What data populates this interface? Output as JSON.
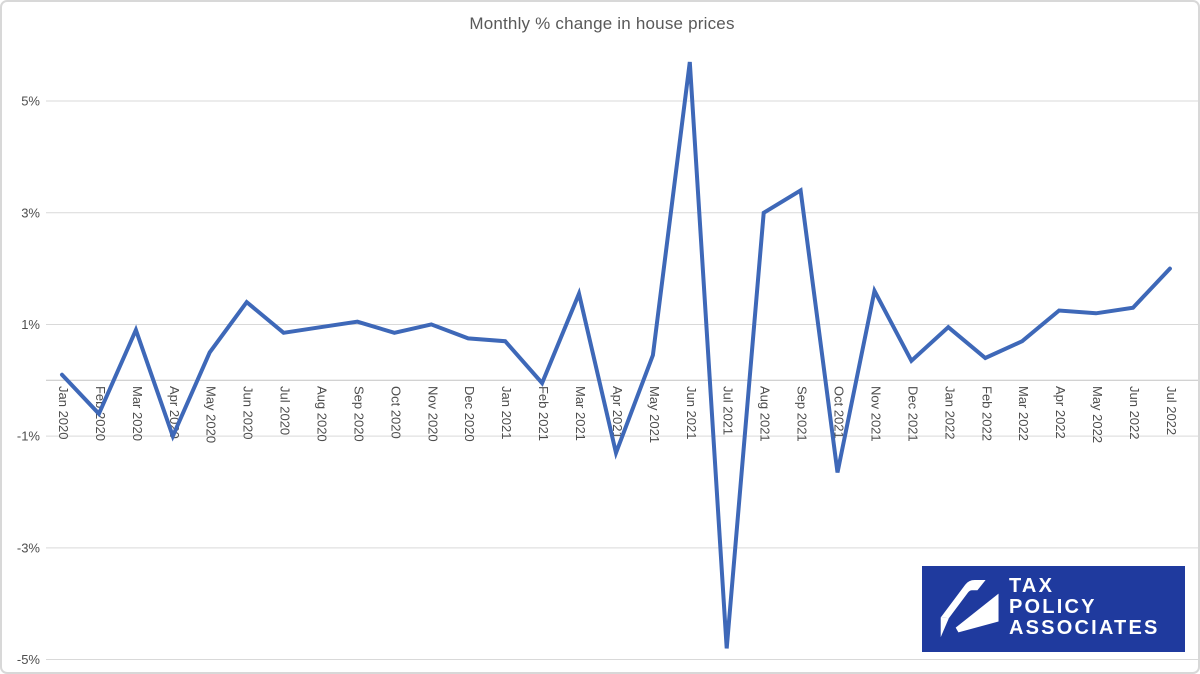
{
  "chart_data": {
    "type": "line",
    "title": "Monthly % change in house prices",
    "categories": [
      "Jan 2020",
      "Feb 2020",
      "Mar 2020",
      "Apr 2020",
      "May 2020",
      "Jun 2020",
      "Jul 2020",
      "Aug 2020",
      "Sep 2020",
      "Oct 2020",
      "Nov 2020",
      "Dec 2020",
      "Jan 2021",
      "Feb 2021",
      "Mar 2021",
      "Apr 2021",
      "May 2021",
      "Jun 2021",
      "Jul 2021",
      "Aug 2021",
      "Sep 2021",
      "Oct 2021",
      "Nov 2021",
      "Dec 2021",
      "Jan 2022",
      "Feb 2022",
      "Mar 2022",
      "Apr 2022",
      "May 2022",
      "Jun 2022",
      "Jul 2022"
    ],
    "values": [
      0.1,
      -0.6,
      0.9,
      -1.0,
      0.5,
      1.4,
      0.85,
      0.95,
      1.05,
      0.85,
      1.0,
      0.75,
      0.7,
      -0.05,
      1.55,
      -1.3,
      0.45,
      5.7,
      -4.8,
      3.0,
      3.4,
      -1.65,
      1.6,
      0.35,
      0.95,
      0.4,
      0.7,
      1.25,
      1.2,
      1.3,
      2.0
    ],
    "xlabel": "",
    "ylabel": "",
    "yticks": {
      "values": [
        5,
        3,
        1,
        -1,
        -3,
        -5
      ],
      "labels": [
        "5%",
        "3%",
        "1%",
        "-1%",
        "-3%",
        "-5%"
      ]
    },
    "ylim": [
      -5.3,
      5.9
    ],
    "grid": true,
    "legend": "none"
  },
  "logo": {
    "lines": [
      "TAX",
      "POLICY",
      "ASSOCIATES"
    ]
  },
  "colors": {
    "line": "#3e68b8",
    "gridline": "#d9d9d9",
    "axis": "#c3c3c3",
    "tick_labels": "#4d4d4d",
    "title": "#595959",
    "logo_background": "#1f3a9e",
    "logo_text": "#ffffff",
    "logo_mark": "#ffffff",
    "page_border": "#d8d8d8"
  }
}
